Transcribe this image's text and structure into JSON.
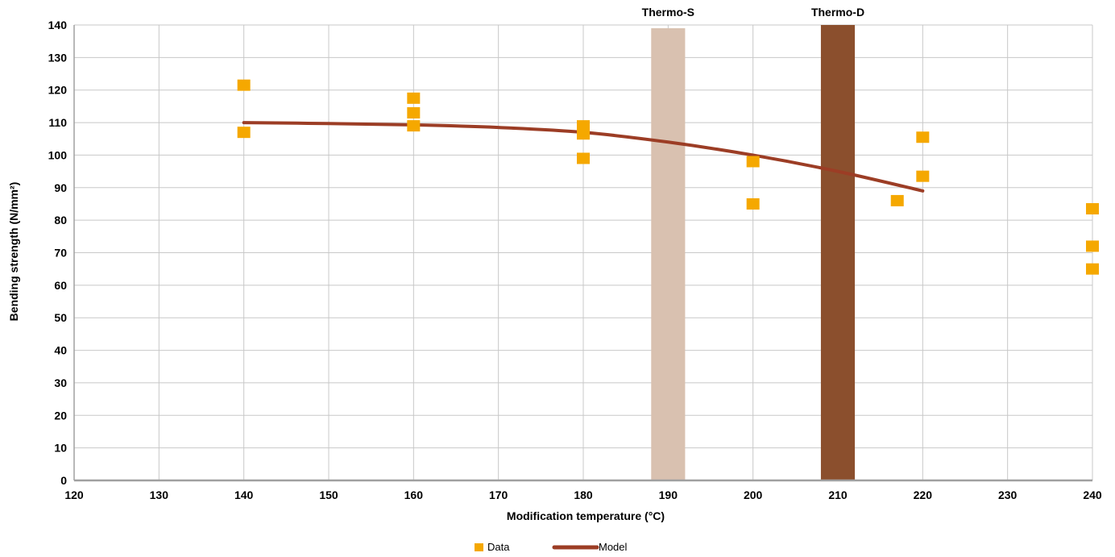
{
  "chart_data": {
    "type": "scatter",
    "title": "",
    "xlabel": "Modification temperature (°C)",
    "ylabel": "Bending strength (N/mm²)",
    "xlim": [
      120,
      240
    ],
    "ylim": [
      0,
      140
    ],
    "xticks": [
      "120",
      "130",
      "140",
      "150",
      "160",
      "170",
      "180",
      "190",
      "200",
      "210",
      "220",
      "230",
      "240"
    ],
    "yticks": [
      "0",
      "10",
      "20",
      "30",
      "40",
      "50",
      "60",
      "70",
      "80",
      "90",
      "100",
      "110",
      "120",
      "130",
      "140"
    ],
    "grid": true,
    "legend_position": "bottom",
    "bands": [
      {
        "label": "Thermo-S",
        "x_from": 188,
        "x_to": 192,
        "y_to": 139,
        "color": "#d9c1b0"
      },
      {
        "label": "Thermo-D",
        "x_from": 208,
        "x_to": 212,
        "y_to": 140,
        "color": "#8b4f2d"
      }
    ],
    "series": [
      {
        "name": "Data",
        "type": "scatter",
        "color": "#f5a800",
        "points": [
          {
            "x": 140,
            "y": 121.5
          },
          {
            "x": 140,
            "y": 107
          },
          {
            "x": 160,
            "y": 117.5
          },
          {
            "x": 160,
            "y": 113
          },
          {
            "x": 160,
            "y": 109
          },
          {
            "x": 180,
            "y": 109
          },
          {
            "x": 180,
            "y": 106.5
          },
          {
            "x": 180,
            "y": 99
          },
          {
            "x": 200,
            "y": 98
          },
          {
            "x": 200,
            "y": 85
          },
          {
            "x": 217,
            "y": 86
          },
          {
            "x": 220,
            "y": 105.5
          },
          {
            "x": 220,
            "y": 93.5
          },
          {
            "x": 240,
            "y": 83.5
          },
          {
            "x": 240,
            "y": 72
          },
          {
            "x": 240,
            "y": 65
          }
        ]
      },
      {
        "name": "Model",
        "type": "line",
        "color": "#9c3d25",
        "points": [
          {
            "x": 140,
            "y": 110
          },
          {
            "x": 150,
            "y": 109.7
          },
          {
            "x": 160,
            "y": 109.3
          },
          {
            "x": 170,
            "y": 108.5
          },
          {
            "x": 180,
            "y": 107
          },
          {
            "x": 190,
            "y": 104
          },
          {
            "x": 200,
            "y": 100
          },
          {
            "x": 210,
            "y": 95
          },
          {
            "x": 220,
            "y": 89
          }
        ]
      }
    ]
  }
}
